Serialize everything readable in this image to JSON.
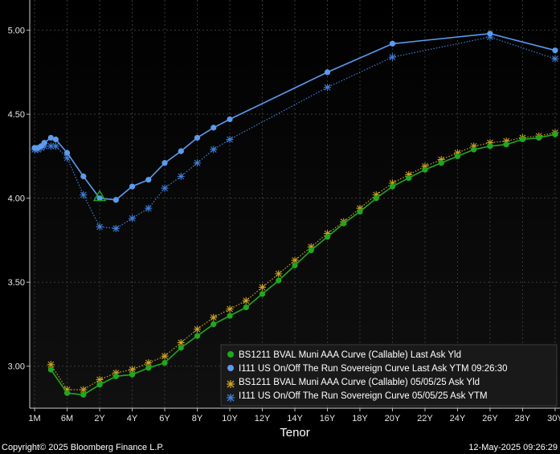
{
  "chart_data": {
    "type": "line",
    "xlabel": "Tenor",
    "ylabel": "",
    "ylim": [
      2.75,
      5.18
    ],
    "y_ticks": [
      "3.00",
      "3.50",
      "4.00",
      "4.50",
      "5.00"
    ],
    "x_ticks": [
      "1M",
      "6M",
      "2Y",
      "4Y",
      "6Y",
      "8Y",
      "10Y",
      "12Y",
      "14Y",
      "16Y",
      "18Y",
      "20Y",
      "22Y",
      "24Y",
      "26Y",
      "28Y",
      "30Y"
    ],
    "grid": true,
    "legend_position": "bottom-right",
    "series": [
      {
        "name": "BS1211 BVAL Muni AAA Curve (Callable) Last Ask Yld",
        "color": "#1fa81f",
        "style": "solid-dot",
        "points": [
          [
            0.5,
            2.98
          ],
          [
            1,
            2.84
          ],
          [
            1.5,
            2.83
          ],
          [
            2,
            2.89
          ],
          [
            2.5,
            2.94
          ],
          [
            3,
            2.95
          ],
          [
            3.5,
            2.99
          ],
          [
            4,
            3.02
          ],
          [
            4.5,
            3.11
          ],
          [
            5,
            3.18
          ],
          [
            5.5,
            3.25
          ],
          [
            6,
            3.3
          ],
          [
            6.5,
            3.35
          ],
          [
            7,
            3.43
          ],
          [
            7.5,
            3.51
          ],
          [
            8,
            3.6
          ],
          [
            8.5,
            3.69
          ],
          [
            9,
            3.77
          ],
          [
            9.5,
            3.85
          ],
          [
            10,
            3.92
          ],
          [
            10.5,
            4.0
          ],
          [
            11,
            4.07
          ],
          [
            11.5,
            4.12
          ],
          [
            12,
            4.17
          ],
          [
            12.5,
            4.21
          ],
          [
            13,
            4.25
          ],
          [
            13.5,
            4.29
          ],
          [
            14,
            4.31
          ],
          [
            14.5,
            4.32
          ],
          [
            15,
            4.35
          ],
          [
            15.5,
            4.36
          ],
          [
            16,
            4.38
          ]
        ]
      },
      {
        "name": "I111 US On/Off The Run Sovereign Curve Last Ask YTM 09:26:30",
        "color": "#5b9bf0",
        "style": "solid-dot",
        "points": [
          [
            0,
            4.3
          ],
          [
            0.1,
            4.3
          ],
          [
            0.2,
            4.31
          ],
          [
            0.3,
            4.33
          ],
          [
            0.5,
            4.36
          ],
          [
            0.65,
            4.35
          ],
          [
            1,
            4.27
          ],
          [
            1.5,
            4.13
          ],
          [
            2,
            4.0
          ],
          [
            2.5,
            3.99
          ],
          [
            3,
            4.07
          ],
          [
            3.5,
            4.11
          ],
          [
            4,
            4.21
          ],
          [
            4.5,
            4.28
          ],
          [
            5,
            4.36
          ],
          [
            5.5,
            4.42
          ],
          [
            6,
            4.47
          ],
          [
            9,
            4.75
          ],
          [
            11,
            4.92
          ],
          [
            14,
            4.98
          ],
          [
            16,
            4.88
          ]
        ]
      },
      {
        "name": "BS1211 BVAL Muni AAA Curve (Callable) 05/05/25 Ask Yld",
        "color": "#c9a227",
        "style": "dotted-star",
        "points": [
          [
            0.5,
            3.01
          ],
          [
            1,
            2.86
          ],
          [
            1.5,
            2.86
          ],
          [
            2,
            2.92
          ],
          [
            2.5,
            2.96
          ],
          [
            3,
            2.98
          ],
          [
            3.5,
            3.02
          ],
          [
            4,
            3.06
          ],
          [
            4.5,
            3.14
          ],
          [
            5,
            3.22
          ],
          [
            5.5,
            3.29
          ],
          [
            6,
            3.34
          ],
          [
            6.5,
            3.39
          ],
          [
            7,
            3.47
          ],
          [
            7.5,
            3.55
          ],
          [
            8,
            3.63
          ],
          [
            8.5,
            3.71
          ],
          [
            9,
            3.79
          ],
          [
            9.5,
            3.86
          ],
          [
            10,
            3.94
          ],
          [
            10.5,
            4.02
          ],
          [
            11,
            4.09
          ],
          [
            11.5,
            4.14
          ],
          [
            12,
            4.19
          ],
          [
            12.5,
            4.23
          ],
          [
            13,
            4.27
          ],
          [
            13.5,
            4.31
          ],
          [
            14,
            4.33
          ],
          [
            14.5,
            4.34
          ],
          [
            15,
            4.36
          ],
          [
            15.5,
            4.37
          ],
          [
            16,
            4.39
          ]
        ]
      },
      {
        "name": "I111 US On/Off The Run Sovereign Curve 05/05/25 Ask YTM",
        "color": "#3f7fd8",
        "style": "dotted-star",
        "points": [
          [
            0,
            4.29
          ],
          [
            0.1,
            4.29
          ],
          [
            0.2,
            4.3
          ],
          [
            0.3,
            4.31
          ],
          [
            0.5,
            4.31
          ],
          [
            0.65,
            4.31
          ],
          [
            1,
            4.24
          ],
          [
            1.5,
            4.02
          ],
          [
            2,
            3.83
          ],
          [
            2.5,
            3.82
          ],
          [
            3,
            3.88
          ],
          [
            3.5,
            3.94
          ],
          [
            4,
            4.06
          ],
          [
            4.5,
            4.13
          ],
          [
            5,
            4.21
          ],
          [
            5.5,
            4.29
          ],
          [
            6,
            4.35
          ],
          [
            9,
            4.66
          ],
          [
            11,
            4.84
          ],
          [
            14,
            4.96
          ],
          [
            16,
            4.83
          ]
        ]
      }
    ],
    "annotations": [
      {
        "type": "triangle-marker",
        "x": 2,
        "y": 4.01,
        "color": "#1fa81f"
      }
    ]
  },
  "footer": {
    "copyright": "Copyright© 2025 Bloomberg Finance L.P.",
    "timestamp": "12-May-2025 09:26:29"
  }
}
